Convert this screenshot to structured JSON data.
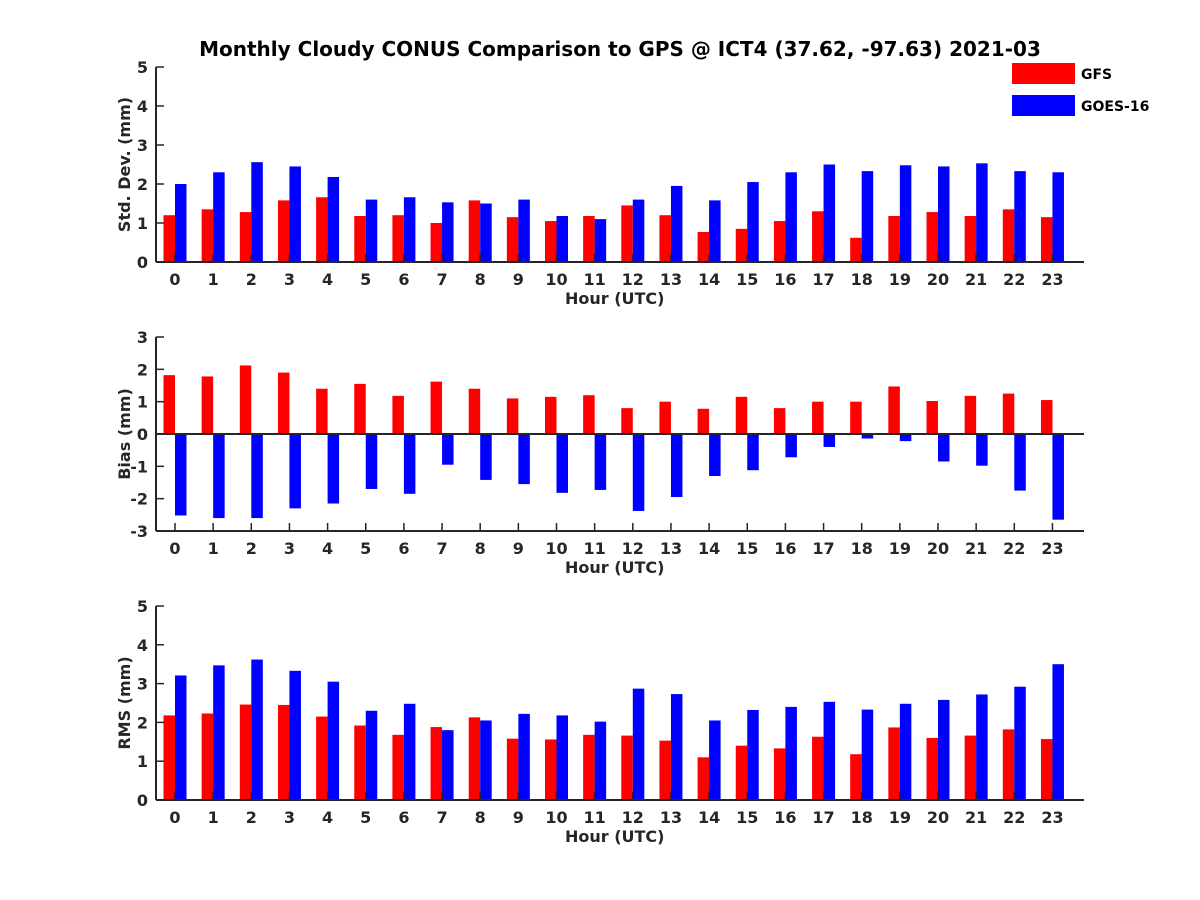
{
  "title": "Monthly Cloudy CONUS Comparison to GPS @ ICT4 (37.62, -97.63) 2021-03",
  "legend": {
    "placement": "top-right",
    "items": [
      {
        "name": "GFS",
        "color": "#ff0000"
      },
      {
        "name": "GOES-16",
        "color": "#0000ff"
      }
    ]
  },
  "chart_data": [
    {
      "type": "bar",
      "xlabel": "Hour (UTC)",
      "ylabel": "Std. Dev. (mm)",
      "ylim": [
        0,
        5
      ],
      "yticks": [
        0,
        1,
        2,
        3,
        4,
        5
      ],
      "categories": [
        "0",
        "1",
        "2",
        "3",
        "4",
        "5",
        "6",
        "7",
        "8",
        "9",
        "10",
        "11",
        "12",
        "13",
        "14",
        "15",
        "16",
        "17",
        "18",
        "19",
        "20",
        "21",
        "22",
        "23"
      ],
      "series": [
        {
          "name": "GFS",
          "color": "#ff0000",
          "values": [
            1.2,
            1.35,
            1.28,
            1.58,
            1.66,
            1.18,
            1.2,
            1.0,
            1.58,
            1.15,
            1.05,
            1.18,
            1.45,
            1.2,
            0.77,
            0.85,
            1.05,
            1.3,
            0.62,
            1.18,
            1.28,
            1.18,
            1.35,
            1.15
          ]
        },
        {
          "name": "GOES-16",
          "color": "#0000ff",
          "values": [
            2.0,
            2.3,
            2.56,
            2.45,
            2.18,
            1.6,
            1.66,
            1.53,
            1.5,
            1.6,
            1.18,
            1.1,
            1.6,
            1.95,
            1.58,
            2.05,
            2.3,
            2.5,
            2.33,
            2.48,
            2.45,
            2.53,
            2.33,
            2.3
          ]
        }
      ]
    },
    {
      "type": "bar",
      "xlabel": "Hour (UTC)",
      "ylabel": "Bias (mm)",
      "ylim": [
        -3,
        3
      ],
      "yticks": [
        -3,
        -2,
        -1,
        0,
        1,
        2,
        3
      ],
      "categories": [
        "0",
        "1",
        "2",
        "3",
        "4",
        "5",
        "6",
        "7",
        "8",
        "9",
        "10",
        "11",
        "12",
        "13",
        "14",
        "15",
        "16",
        "17",
        "18",
        "19",
        "20",
        "21",
        "22",
        "23"
      ],
      "series": [
        {
          "name": "GFS",
          "color": "#ff0000",
          "values": [
            1.82,
            1.78,
            2.12,
            1.9,
            1.4,
            1.55,
            1.18,
            1.62,
            1.4,
            1.1,
            1.15,
            1.2,
            0.8,
            1.0,
            0.78,
            1.15,
            0.8,
            1.0,
            1.0,
            1.47,
            1.02,
            1.18,
            1.25,
            1.05
          ]
        },
        {
          "name": "GOES-16",
          "color": "#0000ff",
          "values": [
            -2.52,
            -2.6,
            -2.6,
            -2.3,
            -2.15,
            -1.7,
            -1.85,
            -0.95,
            -1.42,
            -1.55,
            -1.82,
            -1.73,
            -2.38,
            -1.95,
            -1.3,
            -1.12,
            -0.72,
            -0.4,
            -0.14,
            -0.22,
            -0.85,
            -0.98,
            -1.75,
            -2.65
          ]
        }
      ]
    },
    {
      "type": "bar",
      "xlabel": "Hour (UTC)",
      "ylabel": "RMS (mm)",
      "ylim": [
        0,
        5
      ],
      "yticks": [
        0,
        1,
        2,
        3,
        4,
        5
      ],
      "categories": [
        "0",
        "1",
        "2",
        "3",
        "4",
        "5",
        "6",
        "7",
        "8",
        "9",
        "10",
        "11",
        "12",
        "13",
        "14",
        "15",
        "16",
        "17",
        "18",
        "19",
        "20",
        "21",
        "22",
        "23"
      ],
      "series": [
        {
          "name": "GFS",
          "color": "#ff0000",
          "values": [
            2.18,
            2.23,
            2.46,
            2.45,
            2.15,
            1.92,
            1.68,
            1.88,
            2.13,
            1.58,
            1.56,
            1.68,
            1.66,
            1.53,
            1.1,
            1.4,
            1.33,
            1.63,
            1.18,
            1.87,
            1.6,
            1.66,
            1.82,
            1.57
          ]
        },
        {
          "name": "GOES-16",
          "color": "#0000ff",
          "values": [
            3.21,
            3.47,
            3.62,
            3.33,
            3.05,
            2.3,
            2.48,
            1.8,
            2.05,
            2.22,
            2.18,
            2.02,
            2.87,
            2.73,
            2.05,
            2.32,
            2.4,
            2.53,
            2.33,
            2.48,
            2.58,
            2.72,
            2.92,
            3.5
          ]
        }
      ]
    }
  ]
}
